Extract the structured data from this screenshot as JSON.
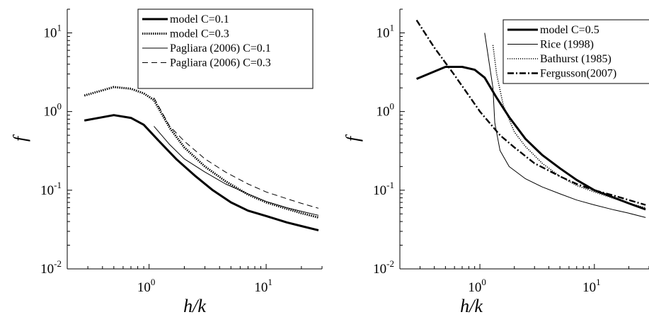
{
  "chart_data": [
    {
      "type": "line",
      "xscale": "log",
      "yscale": "log",
      "xlim": [
        0.2,
        30
      ],
      "ylim": [
        0.01,
        20
      ],
      "xlabel": "h/k",
      "ylabel": "f",
      "xticks": [
        {
          "base": "10",
          "exp": "0"
        },
        {
          "base": "10",
          "exp": "1"
        }
      ],
      "yticks": [
        {
          "base": "10",
          "exp": "-2"
        },
        {
          "base": "10",
          "exp": "-1"
        },
        {
          "base": "10",
          "exp": "0"
        },
        {
          "base": "10",
          "exp": "1"
        }
      ],
      "legend_position": "top-right",
      "series": [
        {
          "name": "model C=0.1",
          "style": "thick-solid",
          "x": [
            0.28,
            0.5,
            0.7,
            0.9,
            1.2,
            1.7,
            2.5,
            3.5,
            5,
            7,
            10,
            15,
            20,
            28
          ],
          "y": [
            0.77,
            0.9,
            0.83,
            0.68,
            0.43,
            0.25,
            0.15,
            0.1,
            0.07,
            0.055,
            0.047,
            0.039,
            0.035,
            0.031
          ]
        },
        {
          "name": "model C=0.3",
          "style": "thick-dotted",
          "x": [
            0.28,
            0.5,
            0.7,
            0.9,
            1.1,
            1.5,
            2,
            3,
            4.5,
            7,
            10,
            15,
            20,
            28
          ],
          "y": [
            1.6,
            2.05,
            1.95,
            1.7,
            1.4,
            0.62,
            0.35,
            0.2,
            0.13,
            0.088,
            0.07,
            0.058,
            0.051,
            0.045
          ]
        },
        {
          "name": "Pagliara (2006)  C=0.1",
          "style": "thin-solid",
          "x": [
            1.1,
            1.5,
            2,
            3,
            4.5,
            7,
            10,
            15,
            20,
            28
          ],
          "y": [
            0.65,
            0.38,
            0.25,
            0.17,
            0.12,
            0.09,
            0.072,
            0.06,
            0.054,
            0.048
          ]
        },
        {
          "name": "Pagliara (2006)  C=0.3",
          "style": "thin-dashed",
          "x": [
            1.1,
            1.5,
            2,
            3,
            4.5,
            7,
            10,
            15,
            20,
            28
          ],
          "y": [
            1.5,
            0.65,
            0.42,
            0.25,
            0.17,
            0.12,
            0.095,
            0.078,
            0.068,
            0.059
          ]
        }
      ]
    },
    {
      "type": "line",
      "xscale": "log",
      "yscale": "log",
      "xlim": [
        0.2,
        30
      ],
      "ylim": [
        0.01,
        20
      ],
      "xlabel": "h/k",
      "ylabel": "f",
      "xticks": [
        {
          "base": "10",
          "exp": "0"
        },
        {
          "base": "10",
          "exp": "1"
        }
      ],
      "yticks": [
        {
          "base": "10",
          "exp": "-2"
        },
        {
          "base": "10",
          "exp": "-1"
        },
        {
          "base": "10",
          "exp": "0"
        },
        {
          "base": "10",
          "exp": "1"
        }
      ],
      "legend_position": "top-right",
      "series": [
        {
          "name": "model C=0.5",
          "style": "thick-solid",
          "x": [
            0.28,
            0.5,
            0.7,
            0.9,
            1.1,
            1.4,
            1.8,
            2.5,
            3.5,
            5,
            7,
            10,
            15,
            20,
            28
          ],
          "y": [
            2.6,
            3.7,
            3.7,
            3.4,
            2.7,
            1.5,
            0.85,
            0.45,
            0.28,
            0.19,
            0.135,
            0.1,
            0.08,
            0.068,
            0.057
          ]
        },
        {
          "name": "Rice (1998)",
          "style": "thin-solid",
          "x": [
            1.1,
            1.3,
            1.35,
            1.5,
            1.8,
            2.5,
            3.5,
            5,
            7,
            10,
            15,
            20,
            28
          ],
          "y": [
            10,
            2,
            0.72,
            0.32,
            0.2,
            0.14,
            0.11,
            0.09,
            0.075,
            0.065,
            0.056,
            0.051,
            0.045
          ]
        },
        {
          "name": "Bathurst (1985)",
          "style": "thin-dotted",
          "x": [
            1.3,
            1.4,
            1.6,
            2,
            2.5,
            3.5,
            5,
            7,
            10,
            15,
            20,
            28
          ],
          "y": [
            7,
            3,
            1.2,
            0.55,
            0.36,
            0.22,
            0.15,
            0.115,
            0.095,
            0.078,
            0.068,
            0.06
          ]
        },
        {
          "name": "Fergusson(2007)",
          "style": "thick-dashdot",
          "x": [
            0.28,
            0.4,
            0.6,
            0.8,
            1,
            1.5,
            2,
            3,
            5,
            7,
            10,
            15,
            20,
            28
          ],
          "y": [
            14.5,
            6.5,
            2.9,
            1.6,
            1.0,
            0.5,
            0.35,
            0.22,
            0.15,
            0.12,
            0.1,
            0.085,
            0.075,
            0.065
          ]
        }
      ]
    }
  ]
}
